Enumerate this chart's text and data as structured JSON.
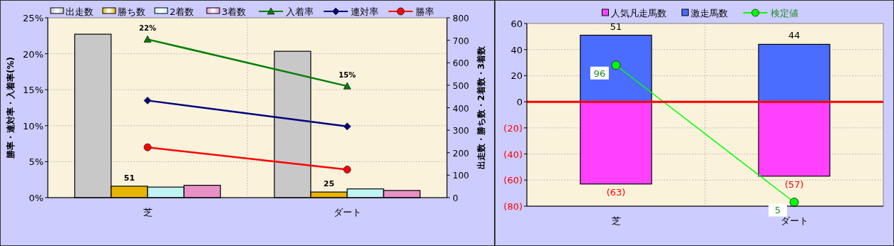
{
  "chart_data": [
    {
      "type": "bar",
      "categories": [
        "芝",
        "ダート"
      ],
      "ylabel": "勝率・連対率・入着率(%)",
      "y2label": "出走数・勝ち数・2着数・3着数",
      "ylim": [
        0,
        25
      ],
      "yticks": [
        {
          "value": 0,
          "label": "0%"
        },
        {
          "value": 5,
          "label": "5%"
        },
        {
          "value": 10,
          "label": "10%"
        },
        {
          "value": 15,
          "label": "15%"
        },
        {
          "value": 20,
          "label": "20%"
        },
        {
          "value": 25,
          "label": "25%"
        }
      ],
      "y2lim": [
        0,
        800
      ],
      "y2ticks": [
        0,
        100,
        200,
        300,
        400,
        500,
        600,
        700,
        800
      ],
      "grid": true,
      "legend": "top",
      "series": [
        {
          "name": "出走数",
          "type": "bar",
          "axis": "y2",
          "color": "#c8c8c8",
          "values": [
            727,
            651
          ]
        },
        {
          "name": "勝ち数",
          "type": "bar",
          "axis": "y2",
          "color": "#e8b400",
          "values": [
            51,
            25
          ],
          "value_labels": [
            "51",
            "25"
          ]
        },
        {
          "name": "2着数",
          "type": "bar",
          "axis": "y2",
          "color": "#c0f4f4",
          "values": [
            47,
            39
          ]
        },
        {
          "name": "3着数",
          "type": "bar",
          "axis": "y2",
          "color": "#e890c8",
          "values": [
            55,
            32
          ]
        },
        {
          "name": "入着率",
          "type": "line",
          "color": "#008000",
          "marker": "triangle",
          "values": [
            22,
            15.5
          ],
          "value_labels": [
            "22%",
            "15%"
          ]
        },
        {
          "name": "連対率",
          "type": "line",
          "color": "#000080",
          "marker": "diamond",
          "values": [
            13.5,
            9.9
          ]
        },
        {
          "name": "勝率",
          "type": "line",
          "color": "#ff0000",
          "marker": "circle",
          "values": [
            7.0,
            3.9
          ]
        }
      ]
    },
    {
      "type": "bar",
      "stacked": true,
      "categories": [
        "芝",
        "ダート"
      ],
      "ylim": [
        -80,
        60
      ],
      "yticks": [
        {
          "value": 60,
          "label": "60"
        },
        {
          "value": 40,
          "label": "40"
        },
        {
          "value": 20,
          "label": "20"
        },
        {
          "value": 0,
          "label": "0"
        },
        {
          "value": -20,
          "label": "(20)"
        },
        {
          "value": -40,
          "label": "(40)"
        },
        {
          "value": -60,
          "label": "(60)"
        },
        {
          "value": -80,
          "label": "(80)"
        }
      ],
      "grid": true,
      "legend": "top",
      "ref_lines": [
        {
          "axis": "y",
          "value": 0,
          "color": "#ff0000"
        }
      ],
      "series": [
        {
          "name": "人気凡走馬数",
          "type": "bar",
          "color": "#ff40ff",
          "values": [
            -63,
            -57
          ],
          "value_labels": [
            "(63)",
            "(57)"
          ]
        },
        {
          "name": "激走馬数",
          "type": "bar",
          "color": "#4a6cff",
          "values": [
            51,
            44
          ],
          "value_labels": [
            "51",
            "44"
          ]
        },
        {
          "name": "検定値",
          "type": "line",
          "color": "#00ff00",
          "marker": "circle",
          "values": [
            28,
            -77
          ]
        }
      ],
      "annotations": [
        {
          "text": "96",
          "x": "芝",
          "y": 28
        },
        {
          "text": "5",
          "x": "ダート",
          "y": -77
        }
      ]
    }
  ]
}
